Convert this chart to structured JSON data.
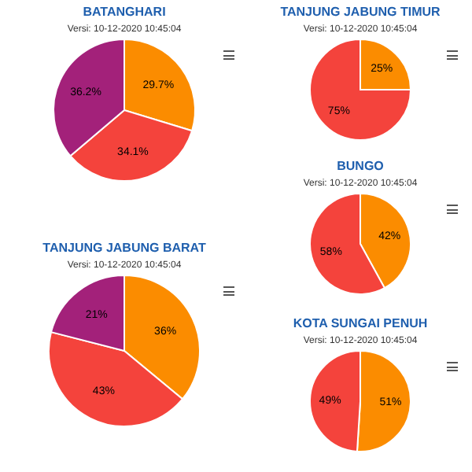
{
  "chart_data": [
    {
      "type": "pie",
      "title": "BATANGHARI",
      "subtitle": "Versi: 10-12-2020 10:45:04",
      "categories": [
        null,
        null,
        null
      ],
      "values": [
        29.7,
        34.1,
        36.2
      ],
      "colors": [
        "#fb8c00",
        "#f4433c",
        "#a3217a"
      ],
      "value_labels": [
        "29.7%",
        "34.1%",
        "36.2%"
      ]
    },
    {
      "type": "pie",
      "title": "TANJUNG JABUNG TIMUR",
      "subtitle": "Versi: 10-12-2020 10:45:04",
      "categories": [
        null,
        null
      ],
      "values": [
        25,
        75
      ],
      "colors": [
        "#fb8c00",
        "#f4433c"
      ],
      "value_labels": [
        "25%",
        "75%"
      ]
    },
    {
      "type": "pie",
      "title": "BUNGO",
      "subtitle": "Versi: 10-12-2020 10:45:04",
      "categories": [
        null,
        null
      ],
      "values": [
        42,
        58
      ],
      "colors": [
        "#fb8c00",
        "#f4433c"
      ],
      "value_labels": [
        "42%",
        "58%"
      ]
    },
    {
      "type": "pie",
      "title": "TANJUNG JABUNG BARAT",
      "subtitle": "Versi: 10-12-2020 10:45:04",
      "categories": [
        null,
        null,
        null
      ],
      "values": [
        36,
        43,
        21
      ],
      "colors": [
        "#fb8c00",
        "#f4433c",
        "#a3217a"
      ],
      "value_labels": [
        "36%",
        "43%",
        "21%"
      ]
    },
    {
      "type": "pie",
      "title": "KOTA SUNGAI PENUH",
      "subtitle": "Versi: 10-12-2020 10:45:04",
      "categories": [
        null,
        null
      ],
      "values": [
        51,
        49
      ],
      "colors": [
        "#fb8c00",
        "#f4433c"
      ],
      "value_labels": [
        "51%",
        "49%"
      ]
    }
  ]
}
